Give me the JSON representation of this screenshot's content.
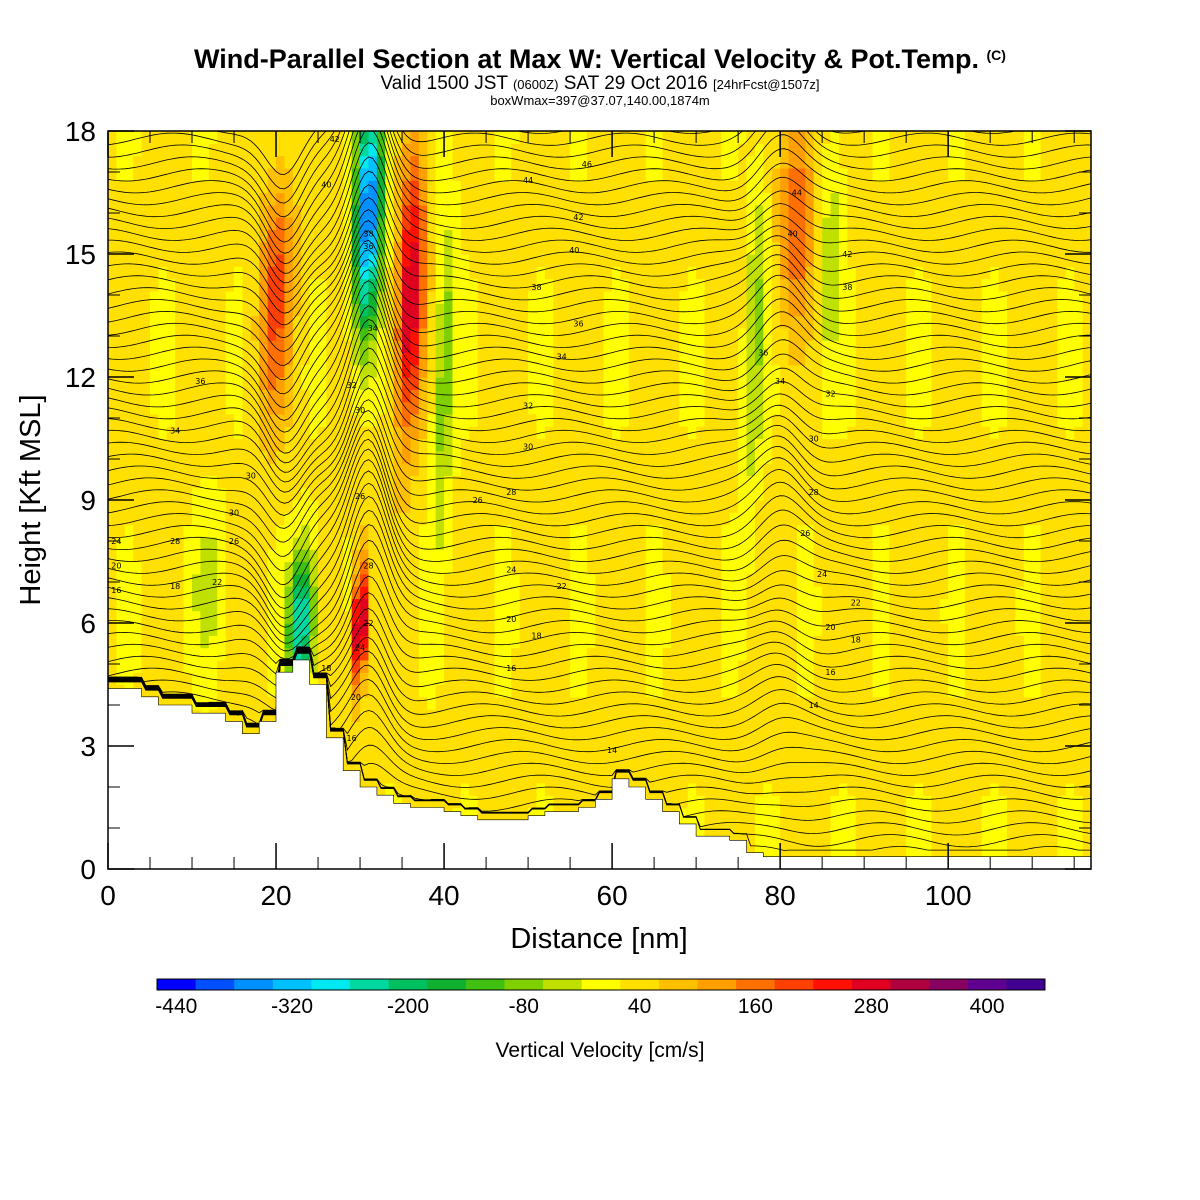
{
  "title": {
    "main": "Wind-Parallel Section at Max W: Vertical Velocity & Pot.Temp.",
    "main_mark": "(C)",
    "valid_a": "Valid 1500 JST",
    "valid_b": "(0600Z)",
    "valid_c": "SAT 29 Oct 2016",
    "valid_d": "[24hrFcst@1507z]",
    "box": "boxWmax=397@37.07,140.00,1874m"
  },
  "chart_data": {
    "type": "heatmap",
    "xlabel": "Distance [nm]",
    "ylabel": "Height [Kft MSL]",
    "xlim": [
      0,
      117
    ],
    "ylim": [
      0,
      18
    ],
    "xticks": [
      0,
      20,
      40,
      60,
      80,
      100
    ],
    "yticks": [
      0,
      3,
      6,
      9,
      12,
      15,
      18
    ],
    "colorbar": {
      "label": "Vertical Velocity [cm/s]",
      "tick_labels": [
        "-440",
        "-320",
        "-200",
        "-80",
        "40",
        "160",
        "280",
        "400"
      ],
      "tick_values": [
        -440,
        -320,
        -200,
        -80,
        40,
        160,
        280,
        400
      ],
      "range": [
        -460,
        460
      ],
      "step": 40,
      "colors": [
        "#0000ff",
        "#0050ff",
        "#0090ff",
        "#00c0ff",
        "#00e8f0",
        "#00d8a0",
        "#00c060",
        "#10b030",
        "#40c010",
        "#80d000",
        "#c0e000",
        "#ffff00",
        "#ffe000",
        "#ffc000",
        "#ffa000",
        "#ff7000",
        "#ff4000",
        "#ff1000",
        "#e00020",
        "#b00040",
        "#880060",
        "#600090",
        "#400090"
      ]
    },
    "terrain": {
      "x": [
        0,
        2,
        4,
        6,
        8,
        10,
        12,
        14,
        16,
        18,
        20,
        22,
        24,
        26,
        28,
        30,
        32,
        34,
        36,
        38,
        40,
        42,
        44,
        46,
        48,
        50,
        52,
        54,
        56,
        58,
        60,
        62,
        64,
        66,
        68,
        70,
        72,
        74,
        76,
        78,
        80,
        82,
        84,
        86,
        88,
        90,
        92,
        94,
        96,
        98,
        100,
        102,
        104,
        106,
        108,
        110,
        112,
        114,
        117
      ],
      "y": [
        4.4,
        4.4,
        4.2,
        4.0,
        4.0,
        3.8,
        3.8,
        3.6,
        3.3,
        3.6,
        4.8,
        5.1,
        4.5,
        3.2,
        2.4,
        2.0,
        1.8,
        1.6,
        1.5,
        1.5,
        1.4,
        1.3,
        1.2,
        1.2,
        1.2,
        1.3,
        1.4,
        1.4,
        1.5,
        1.7,
        2.2,
        2.0,
        1.7,
        1.4,
        1.1,
        0.8,
        0.8,
        0.7,
        0.4,
        0.3,
        0.3,
        0.3,
        0.3,
        0.3,
        0.3,
        0.3,
        0.3,
        0.3,
        0.3,
        0.3,
        0.3,
        0.3,
        0.3,
        0.3,
        0.3,
        0.3,
        0.3,
        0.3,
        0.3
      ]
    },
    "velocity_features": [
      {
        "x": 31,
        "z": 16,
        "w": -420,
        "sx": 1.6,
        "sz": 3.0
      },
      {
        "x": 23,
        "z": 6,
        "w": -320,
        "sx": 1.5,
        "sz": 1.8
      },
      {
        "x": 36,
        "z": 14,
        "w": 280,
        "sx": 1.6,
        "sz": 3.5
      },
      {
        "x": 30,
        "z": 6,
        "w": 380,
        "sx": 0.8,
        "sz": 1.5
      },
      {
        "x": 40,
        "z": 12,
        "w": -120,
        "sx": 1.2,
        "sz": 4.0
      },
      {
        "x": 20,
        "z": 14,
        "w": 160,
        "sx": 2.0,
        "sz": 3.0
      },
      {
        "x": 82,
        "z": 16,
        "w": 160,
        "sx": 2.0,
        "sz": 2.5
      },
      {
        "x": 77,
        "z": 13,
        "w": -100,
        "sx": 1.2,
        "sz": 4.0
      },
      {
        "x": 86,
        "z": 15,
        "w": -80,
        "sx": 1.3,
        "sz": 3.0
      },
      {
        "x": 12,
        "z": 7,
        "w": -60,
        "sx": 2.0,
        "sz": 2.0
      }
    ],
    "theta_contour_labels": [
      {
        "x": 27,
        "z": 17.8,
        "text": "42"
      },
      {
        "x": 26,
        "z": 16.7,
        "text": "40"
      },
      {
        "x": 31,
        "z": 15.5,
        "text": "38"
      },
      {
        "x": 31,
        "z": 15.2,
        "text": "36"
      },
      {
        "x": 31.5,
        "z": 13.2,
        "text": "34"
      },
      {
        "x": 29,
        "z": 11.8,
        "text": "32"
      },
      {
        "x": 30,
        "z": 11.2,
        "text": "30"
      },
      {
        "x": 30,
        "z": 9.1,
        "text": "26"
      },
      {
        "x": 31,
        "z": 7.4,
        "text": "28"
      },
      {
        "x": 31,
        "z": 6.0,
        "text": "22"
      },
      {
        "x": 30,
        "z": 5.4,
        "text": "24"
      },
      {
        "x": 29.5,
        "z": 4.2,
        "text": "20"
      },
      {
        "x": 29,
        "z": 3.2,
        "text": "16"
      },
      {
        "x": 26,
        "z": 4.9,
        "text": "18"
      },
      {
        "x": 57,
        "z": 17.2,
        "text": "46"
      },
      {
        "x": 50,
        "z": 16.8,
        "text": "44"
      },
      {
        "x": 56,
        "z": 15.9,
        "text": "42"
      },
      {
        "x": 55.5,
        "z": 15.1,
        "text": "40"
      },
      {
        "x": 51,
        "z": 14.2,
        "text": "38"
      },
      {
        "x": 56,
        "z": 13.3,
        "text": "36"
      },
      {
        "x": 54,
        "z": 12.5,
        "text": "34"
      },
      {
        "x": 50,
        "z": 11.3,
        "text": "32"
      },
      {
        "x": 50,
        "z": 10.3,
        "text": "30"
      },
      {
        "x": 44,
        "z": 9.0,
        "text": "26"
      },
      {
        "x": 48,
        "z": 9.2,
        "text": "28"
      },
      {
        "x": 48,
        "z": 7.3,
        "text": "24"
      },
      {
        "x": 54,
        "z": 6.9,
        "text": "22"
      },
      {
        "x": 48,
        "z": 6.1,
        "text": "20"
      },
      {
        "x": 51,
        "z": 5.7,
        "text": "18"
      },
      {
        "x": 48,
        "z": 4.9,
        "text": "16"
      },
      {
        "x": 60,
        "z": 2.9,
        "text": "14"
      },
      {
        "x": 82,
        "z": 16.5,
        "text": "44"
      },
      {
        "x": 81.5,
        "z": 15.5,
        "text": "40"
      },
      {
        "x": 88,
        "z": 15.0,
        "text": "42"
      },
      {
        "x": 88,
        "z": 14.2,
        "text": "38"
      },
      {
        "x": 78,
        "z": 12.6,
        "text": "36"
      },
      {
        "x": 80,
        "z": 11.9,
        "text": "34"
      },
      {
        "x": 86,
        "z": 11.6,
        "text": "32"
      },
      {
        "x": 84,
        "z": 10.5,
        "text": "30"
      },
      {
        "x": 84,
        "z": 9.2,
        "text": "28"
      },
      {
        "x": 83,
        "z": 8.2,
        "text": "26"
      },
      {
        "x": 85,
        "z": 7.2,
        "text": "24"
      },
      {
        "x": 89,
        "z": 6.5,
        "text": "22"
      },
      {
        "x": 86,
        "z": 5.9,
        "text": "20"
      },
      {
        "x": 89,
        "z": 5.6,
        "text": "18"
      },
      {
        "x": 86,
        "z": 4.8,
        "text": "16"
      },
      {
        "x": 84,
        "z": 4.0,
        "text": "14"
      },
      {
        "x": 11,
        "z": 11.9,
        "text": "36"
      },
      {
        "x": 8,
        "z": 10.7,
        "text": "34"
      },
      {
        "x": 17,
        "z": 9.6,
        "text": "30"
      },
      {
        "x": 15,
        "z": 8.7,
        "text": "30"
      },
      {
        "x": 8,
        "z": 8.0,
        "text": "28"
      },
      {
        "x": 15,
        "z": 8.0,
        "text": "26"
      },
      {
        "x": 1,
        "z": 8.0,
        "text": "24"
      },
      {
        "x": 1,
        "z": 7.4,
        "text": "20"
      },
      {
        "x": 8,
        "z": 6.9,
        "text": "18"
      },
      {
        "x": 13,
        "z": 7.0,
        "text": "22"
      },
      {
        "x": 1,
        "z": 6.8,
        "text": "16"
      }
    ]
  }
}
